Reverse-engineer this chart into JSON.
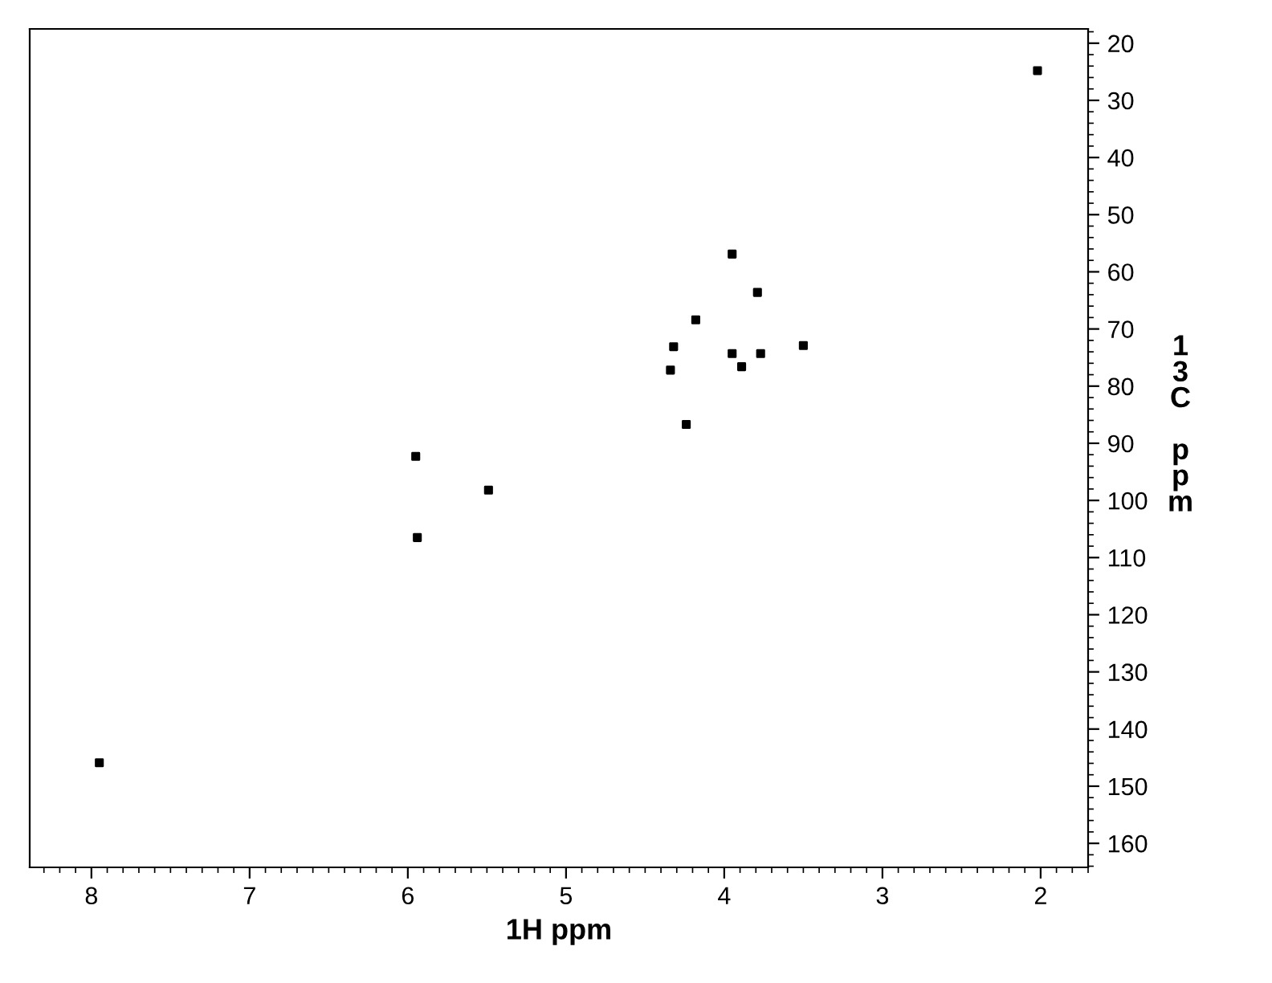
{
  "chart_data": {
    "type": "scatter",
    "xlabel": "1H ppm",
    "ylabel": "13C ppm",
    "x": [
      2.02,
      3.95,
      3.79,
      4.18,
      4.32,
      3.95,
      3.77,
      3.5,
      4.34,
      3.89,
      4.24,
      5.95,
      5.49,
      5.94,
      7.95
    ],
    "values": [
      24.8,
      56.9,
      63.6,
      68.4,
      73.1,
      74.3,
      74.3,
      72.9,
      77.2,
      76.6,
      86.7,
      92.3,
      98.2,
      106.5,
      145.9
    ],
    "color": "#000000",
    "marker": "square",
    "grid": false,
    "xlim": [
      8.39,
      1.7
    ],
    "xticks": [
      8,
      7,
      6,
      5,
      4,
      3,
      2
    ],
    "ylim": [
      164.2,
      17.5
    ],
    "yticks": [
      20,
      30,
      40,
      50,
      60,
      70,
      80,
      90,
      100,
      110,
      120,
      130,
      140,
      150,
      160
    ]
  }
}
